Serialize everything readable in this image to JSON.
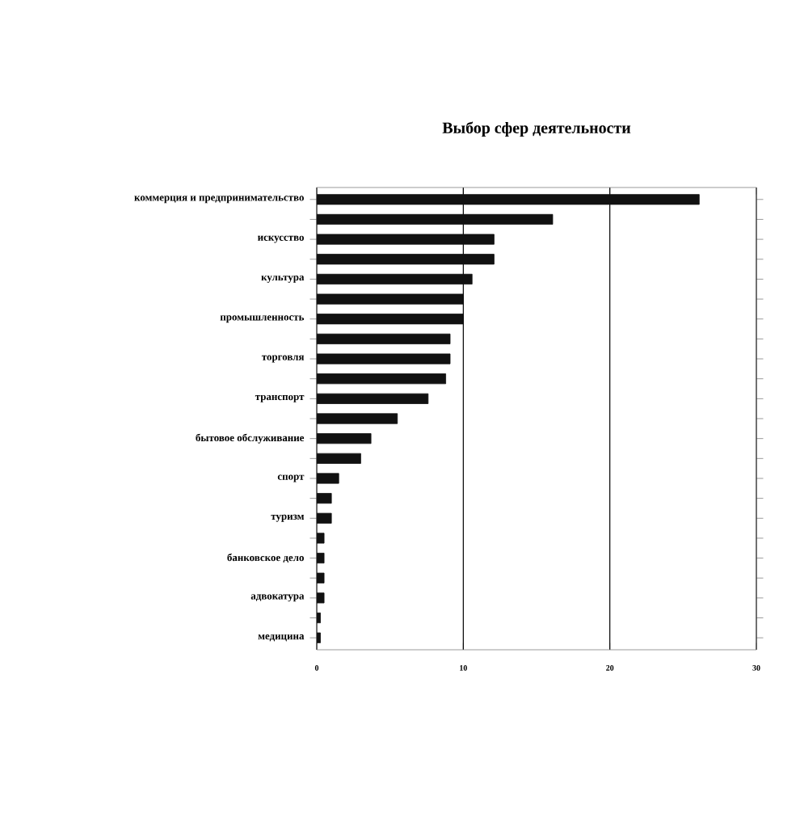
{
  "chart_data": {
    "type": "bar",
    "orientation": "horizontal",
    "title": "Выбор сфер деятельности",
    "categories": [
      "коммерция и предпринимательство",
      null,
      "искусство",
      null,
      "культура",
      null,
      "промышленность",
      null,
      "торговля",
      null,
      "транспорт",
      null,
      "бытовое обслуживание",
      null,
      "спорт",
      null,
      "туризм",
      null,
      "банковское дело",
      null,
      "адвокатура",
      null,
      "медицина"
    ],
    "values": [
      26.1,
      16.1,
      12.1,
      12.1,
      10.6,
      10.0,
      10.0,
      9.1,
      9.1,
      8.8,
      7.6,
      5.5,
      3.7,
      3.0,
      1.5,
      1.0,
      1.0,
      0.5,
      0.5,
      0.5,
      0.5,
      0.25,
      0.25
    ],
    "color": "#111111",
    "xlim": [
      0,
      30
    ],
    "xticks": [
      0,
      10,
      20,
      30
    ],
    "grid": "x"
  }
}
